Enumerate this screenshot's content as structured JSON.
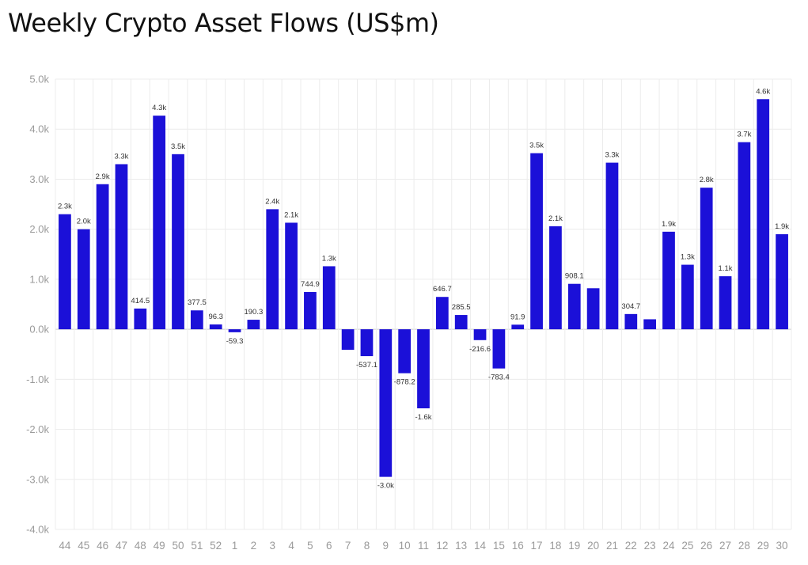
{
  "title": "Weekly Crypto Asset Flows (US$m)",
  "colors": {
    "bar": "#1b10d8",
    "grid": "#ececec",
    "zero_line": "#cfcfcf"
  },
  "chart_data": {
    "type": "bar",
    "title": "Weekly Crypto Asset Flows (US$m)",
    "xlabel": "",
    "ylabel": "",
    "ylim": [
      -4000,
      5000
    ],
    "yticks": [
      5000,
      4000,
      3000,
      2000,
      1000,
      0,
      -1000,
      -2000,
      -3000,
      -4000
    ],
    "ytick_labels": [
      "5.0k",
      "4.0k",
      "3.0k",
      "2.0k",
      "1.0k",
      "0.0k",
      "-1.0k",
      "-2.0k",
      "-3.0k",
      "-4.0k"
    ],
    "grid": true,
    "categories": [
      "44",
      "45",
      "46",
      "47",
      "48",
      "49",
      "50",
      "51",
      "52",
      "1",
      "2",
      "3",
      "4",
      "5",
      "6",
      "7",
      "8",
      "9",
      "10",
      "11",
      "12",
      "13",
      "14",
      "15",
      "16",
      "17",
      "18",
      "19",
      "20",
      "21",
      "22",
      "23",
      "24",
      "25",
      "26",
      "27",
      "28",
      "29",
      "30"
    ],
    "values": [
      2300,
      2000,
      2900,
      3300,
      414.5,
      4270,
      3500,
      377.5,
      96.3,
      -59.3,
      190.3,
      2400,
      2130,
      744.9,
      1260,
      -410,
      -537.1,
      -2950,
      -878.2,
      -1580,
      646.7,
      285.5,
      -216.6,
      -783.4,
      91.9,
      3520,
      2060,
      908.1,
      820,
      3330,
      304.7,
      200,
      1950,
      1290,
      2830,
      1060,
      3740,
      4600,
      1900
    ],
    "data_labels": [
      "2.3k",
      "2.0k",
      "2.9k",
      "3.3k",
      "414.5",
      "4.3k",
      "3.5k",
      "377.5",
      "96.3",
      "-59.3",
      "190.3",
      "2.4k",
      "2.1k",
      "744.9",
      "1.3k",
      "",
      "-537.1",
      "-3.0k",
      "-878.2",
      "-1.6k",
      "646.7",
      "285.5",
      "-216.6",
      "-783.4",
      "91.9",
      "3.5k",
      "2.1k",
      "908.1",
      "",
      "3.3k",
      "304.7",
      "",
      "1.9k",
      "1.3k",
      "2.8k",
      "1.1k",
      "3.7k",
      "4.6k",
      "1.9k"
    ]
  }
}
